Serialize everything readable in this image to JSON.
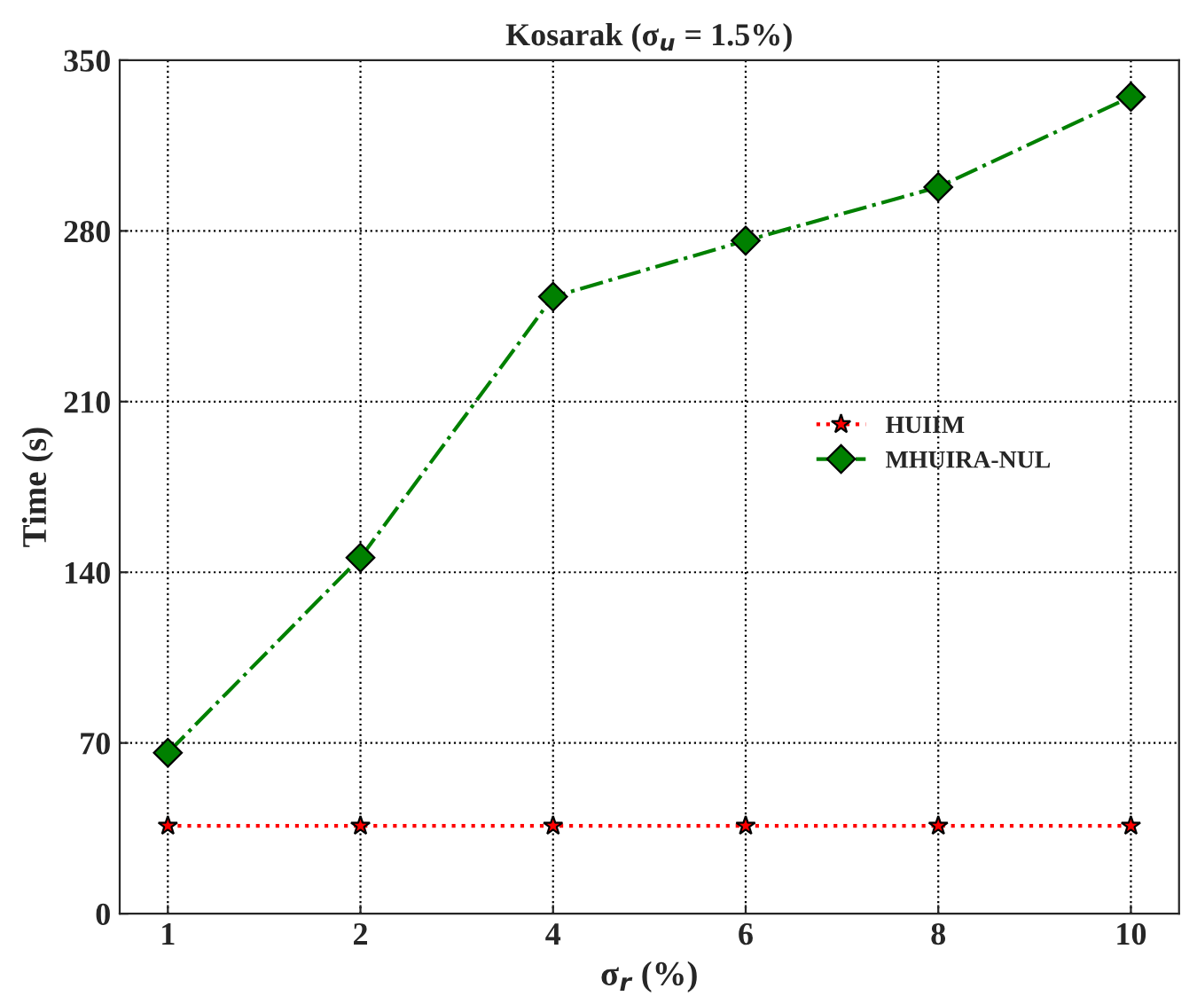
{
  "chart_data": {
    "type": "line",
    "title": "Kosarak (σ$_{u}$ = 1.5%)",
    "xlabel": "σ$_{r}$ (%)",
    "ylabel": "Time (s)",
    "categories": [
      "1",
      "2",
      "4",
      "6",
      "8",
      "10"
    ],
    "series": [
      {
        "name": "HUIIM",
        "color": "#ff0000",
        "marker": "star",
        "line_style": "dotted",
        "values": [
          36,
          36,
          36,
          36,
          36,
          36
        ]
      },
      {
        "name": "MHUIRA-NUL",
        "color": "#008000",
        "marker": "diamond",
        "line_style": "dashdot",
        "values": [
          66,
          146,
          253,
          276,
          298,
          335
        ]
      }
    ],
    "ylim": [
      0,
      350
    ],
    "yticks": [
      0,
      70,
      140,
      210,
      280,
      350
    ],
    "grid": true,
    "legend": "center right"
  }
}
